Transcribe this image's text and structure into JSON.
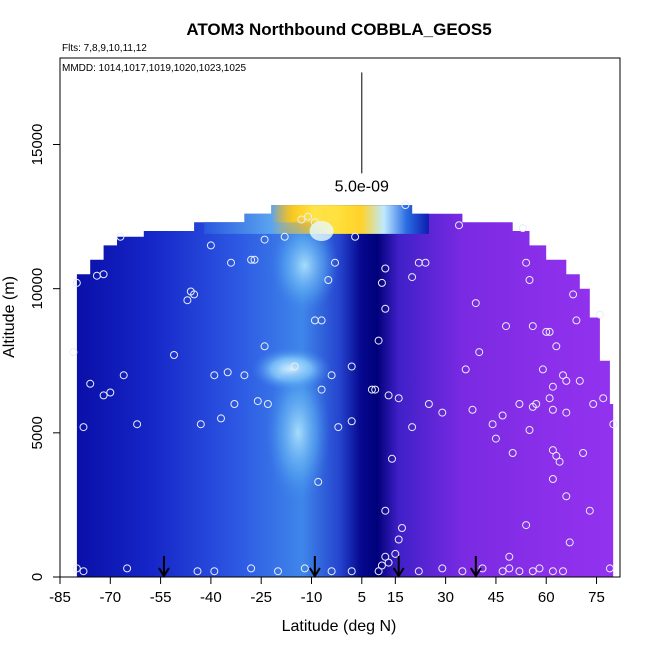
{
  "chart_data": {
    "type": "heatmap",
    "title": "ATOM3 Northbound COBBLA_GEOS5",
    "flights_label": "Flts: 7,8,9,10,11,12",
    "dates_label": "MMDD: 1014,1017,1019,1020,1023,1025",
    "xlabel": "Latitude (deg N)",
    "ylabel": "Altitude (m)",
    "xlim": [
      -85,
      82
    ],
    "ylim": [
      0,
      18000
    ],
    "x_ticks": [
      -85,
      -70,
      -55,
      -40,
      -25,
      -10,
      5,
      15,
      30,
      45,
      60,
      75
    ],
    "y_ticks": [
      0,
      5000,
      10000,
      15000
    ],
    "scale_bar_label": "5.0e-09",
    "scale_bar_altitude_range": [
      14000,
      17500
    ],
    "colors": {
      "deep_blue": "#0a0fa8",
      "mid_blue": "#1e3ad8",
      "light_blue": "#63a9ef",
      "cyan": "#aee6ff",
      "yellow": "#ffd91a",
      "orange": "#f5a800",
      "red": "#e01010",
      "purple": "#8a2ee8",
      "violet": "#6b27e0",
      "navy": "#00007a"
    },
    "takeoff_arrows_lat": [
      -54,
      -9,
      16,
      39
    ],
    "samples": [
      [
        -80,
        10200
      ],
      [
        -81,
        7800
      ],
      [
        -74,
        10450
      ],
      [
        -72,
        10500
      ],
      [
        -76,
        6700
      ],
      [
        -72,
        6300
      ],
      [
        -70,
        6400
      ],
      [
        -78,
        5200
      ],
      [
        -62,
        5300
      ],
      [
        -66,
        7000
      ],
      [
        -67,
        11800
      ],
      [
        -51,
        7700
      ],
      [
        -45,
        9800
      ],
      [
        -47,
        9600
      ],
      [
        -46,
        9900
      ],
      [
        -40,
        11500
      ],
      [
        -39,
        7000
      ],
      [
        -35,
        7100
      ],
      [
        -30,
        7000
      ],
      [
        -33,
        6000
      ],
      [
        -37,
        5500
      ],
      [
        -43,
        5300
      ],
      [
        -34,
        10900
      ],
      [
        -28,
        11000
      ],
      [
        -27,
        11000
      ],
      [
        -24,
        11700
      ],
      [
        -24,
        8000
      ],
      [
        -18,
        11800
      ],
      [
        -13,
        12400
      ],
      [
        -11,
        12500
      ],
      [
        -9,
        12300
      ],
      [
        -15,
        7300
      ],
      [
        -23,
        6000
      ],
      [
        -26,
        6100
      ],
      [
        -9,
        8900
      ],
      [
        -7,
        8900
      ],
      [
        -5,
        10300
      ],
      [
        -3,
        10900
      ],
      [
        -4,
        7000
      ],
      [
        -7,
        6500
      ],
      [
        -8,
        3300
      ],
      [
        -2,
        5200
      ],
      [
        2,
        5400
      ],
      [
        3,
        11800
      ],
      [
        2,
        7300
      ],
      [
        8,
        6500
      ],
      [
        9,
        6500
      ],
      [
        11,
        10200
      ],
      [
        12,
        9300
      ],
      [
        12,
        10700
      ],
      [
        10,
        8200
      ],
      [
        13,
        6300
      ],
      [
        16,
        6200
      ],
      [
        20,
        10400
      ],
      [
        22,
        10900
      ],
      [
        24,
        10900
      ],
      [
        18,
        12900
      ],
      [
        20,
        5200
      ],
      [
        25,
        6000
      ],
      [
        29,
        5700
      ],
      [
        34,
        12200
      ],
      [
        36,
        7200
      ],
      [
        38,
        5800
      ],
      [
        39,
        9500
      ],
      [
        40,
        7800
      ],
      [
        44,
        5300
      ],
      [
        45,
        4800
      ],
      [
        48,
        8700
      ],
      [
        47,
        5600
      ],
      [
        50,
        4300
      ],
      [
        52,
        6000
      ],
      [
        53,
        12100
      ],
      [
        54,
        10900
      ],
      [
        55,
        10300
      ],
      [
        56,
        8700
      ],
      [
        56,
        5900
      ],
      [
        57,
        6000
      ],
      [
        55,
        5100
      ],
      [
        60,
        8500
      ],
      [
        61,
        8500
      ],
      [
        63,
        8000
      ],
      [
        62,
        6600
      ],
      [
        61,
        6200
      ],
      [
        62,
        5800
      ],
      [
        59,
        7200
      ],
      [
        62,
        4400
      ],
      [
        63,
        4200
      ],
      [
        64,
        4000
      ],
      [
        65,
        7000
      ],
      [
        66,
        6800
      ],
      [
        66,
        5700
      ],
      [
        68,
        9800
      ],
      [
        69,
        8900
      ],
      [
        70,
        6800
      ],
      [
        71,
        4300
      ],
      [
        73,
        2300
      ],
      [
        74,
        6000
      ],
      [
        76,
        9100
      ],
      [
        77,
        6200
      ],
      [
        80,
        5300
      ],
      [
        62,
        3400
      ],
      [
        66,
        2800
      ],
      [
        67,
        1200
      ],
      [
        54,
        1800
      ],
      [
        49,
        700
      ],
      [
        17,
        1700
      ],
      [
        16,
        1300
      ],
      [
        14,
        4100
      ],
      [
        12,
        2300
      ],
      [
        -80,
        300
      ],
      [
        -78,
        200
      ],
      [
        -65,
        300
      ],
      [
        -44,
        200
      ],
      [
        -39,
        200
      ],
      [
        -28,
        300
      ],
      [
        -20,
        200
      ],
      [
        -12,
        300
      ],
      [
        -4,
        200
      ],
      [
        2,
        200
      ],
      [
        10,
        200
      ],
      [
        11,
        400
      ],
      [
        13,
        500
      ],
      [
        15,
        800
      ],
      [
        12,
        700
      ],
      [
        22,
        200
      ],
      [
        29,
        300
      ],
      [
        35,
        200
      ],
      [
        41,
        300
      ],
      [
        47,
        200
      ],
      [
        49,
        300
      ],
      [
        52,
        200
      ],
      [
        56,
        200
      ],
      [
        58,
        300
      ],
      [
        62,
        200
      ],
      [
        65,
        200
      ],
      [
        79,
        300
      ]
    ]
  }
}
